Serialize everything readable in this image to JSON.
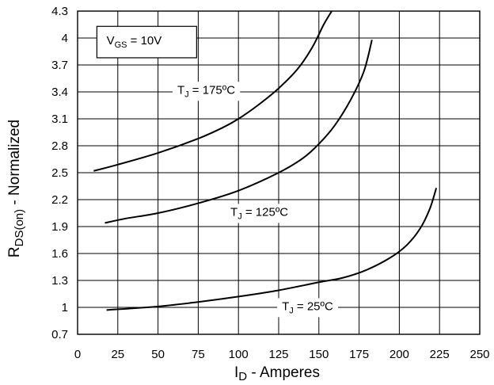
{
  "chart_data": {
    "type": "line",
    "title": "",
    "xlabel": {
      "main": "I",
      "sub": "D",
      "rest": " - Amperes"
    },
    "ylabel": {
      "main": "R",
      "sub": "DS(on)",
      "rest": " - Normalized"
    },
    "xlim": [
      0,
      250
    ],
    "ylim": [
      0.7,
      4.3
    ],
    "xticks": [
      0,
      25,
      50,
      75,
      100,
      125,
      150,
      175,
      200,
      225,
      250
    ],
    "yticks": [
      "0.7",
      "1",
      "1.3",
      "1.6",
      "1.9",
      "2.2",
      "2.5",
      "2.8",
      "3.1",
      "3.4",
      "3.7",
      "4",
      "4.3"
    ],
    "grid": true,
    "legend_box": {
      "main": "V",
      "sub": "GS",
      "rest": " = 10V"
    },
    "series": [
      {
        "name": "T_J = 175ºC",
        "label": {
          "main": "T",
          "sub": "J",
          "rest": " = 175ºC"
        },
        "points": [
          [
            10,
            2.52
          ],
          [
            25,
            2.59
          ],
          [
            50,
            2.72
          ],
          [
            75,
            2.88
          ],
          [
            90,
            3.0
          ],
          [
            100,
            3.1
          ],
          [
            112,
            3.25
          ],
          [
            125,
            3.44
          ],
          [
            137,
            3.66
          ],
          [
            146,
            3.9
          ],
          [
            153,
            4.15
          ],
          [
            158,
            4.3
          ]
        ]
      },
      {
        "name": "T_J = 125ºC",
        "label": {
          "main": "T",
          "sub": "J",
          "rest": " = 125ºC"
        },
        "points": [
          [
            17,
            1.94
          ],
          [
            30,
            1.99
          ],
          [
            50,
            2.05
          ],
          [
            75,
            2.16
          ],
          [
            100,
            2.3
          ],
          [
            125,
            2.5
          ],
          [
            140,
            2.66
          ],
          [
            150,
            2.82
          ],
          [
            160,
            3.03
          ],
          [
            170,
            3.32
          ],
          [
            178,
            3.63
          ],
          [
            183,
            3.98
          ]
        ]
      },
      {
        "name": "T_J = 25ºC",
        "label": {
          "main": "T",
          "sub": "J",
          "rest": " = 25ºC"
        },
        "points": [
          [
            18,
            0.97
          ],
          [
            50,
            1.01
          ],
          [
            75,
            1.06
          ],
          [
            100,
            1.12
          ],
          [
            125,
            1.19
          ],
          [
            150,
            1.28
          ],
          [
            165,
            1.33
          ],
          [
            180,
            1.42
          ],
          [
            195,
            1.56
          ],
          [
            205,
            1.7
          ],
          [
            213,
            1.88
          ],
          [
            219,
            2.1
          ],
          [
            223,
            2.33
          ]
        ]
      }
    ]
  }
}
